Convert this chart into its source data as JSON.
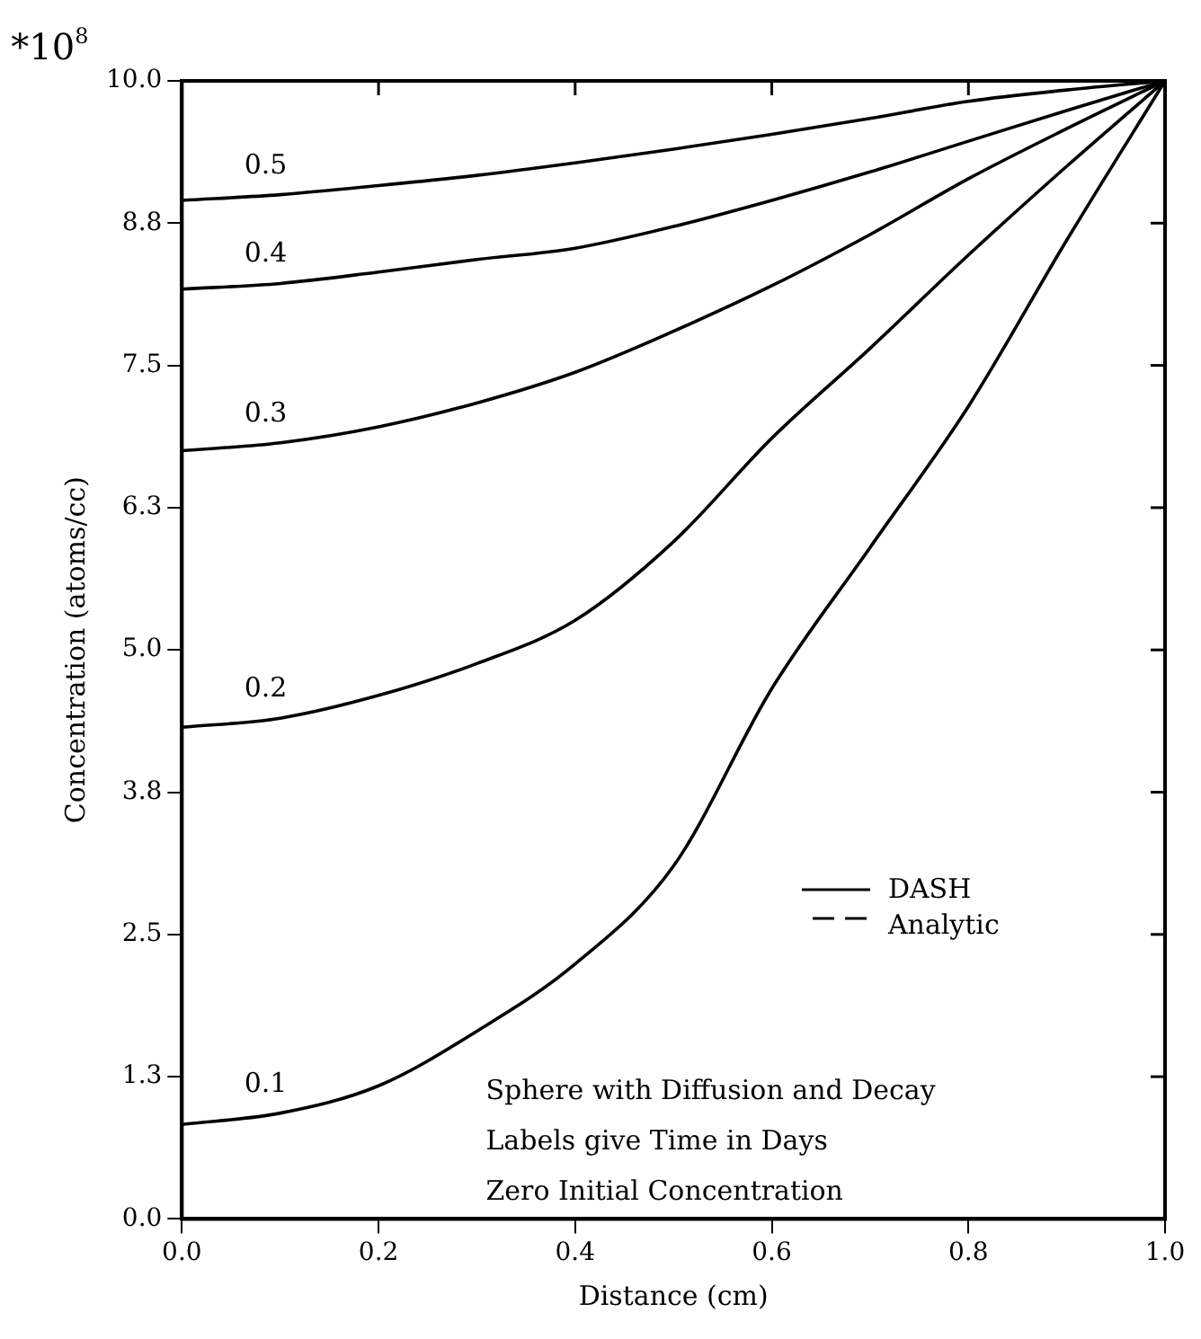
{
  "chart_data": {
    "type": "line",
    "xlabel": "Distance (cm)",
    "ylabel": "Concentration (atoms/cc)",
    "annotations": [
      "*10$^{8}$",
      "DASH",
      "Analytic",
      "Sphere with Diffusion and Decay",
      "Labels give Time in Days",
      "Zero Initial Concentration"
    ],
    "x": [
      0,
      0.1,
      0.2,
      0.3,
      0.4,
      0.5,
      0.6,
      0.7,
      0.8,
      0.9,
      1.0
    ],
    "xlim": [
      0,
      1.0
    ],
    "xticks": [
      {
        "value": 0,
        "label": "0.0"
      },
      0.2,
      0.4,
      0.6,
      0.8,
      {
        "value": 1,
        "label": "1.0"
      }
    ],
    "ylim": [
      0,
      10
    ],
    "yticks": [
      {
        "value": 0,
        "label": "0.0"
      },
      {
        "value": 1.25,
        "label": "1.3"
      },
      2.5,
      {
        "value": 3.75,
        "label": "3.8"
      },
      {
        "value": 5,
        "label": "5.0"
      },
      {
        "value": 6.25,
        "label": "6.3"
      },
      7.5,
      {
        "value": 8.75,
        "label": "8.8"
      },
      {
        "value": 10,
        "label": "10.0"
      }
    ],
    "grid": false,
    "legend": false,
    "marker": "none",
    "line_style": "solid",
    "series": [
      {
        "name": "0.1",
        "color": "#000000",
        "values": [
          0.83,
          0.93,
          1.17,
          1.65,
          2.24,
          3.1,
          4.66,
          5.9,
          7.14,
          8.6,
          10.0
        ]
      },
      {
        "name": "0.2",
        "color": "#000000",
        "values": [
          4.32,
          4.4,
          4.6,
          4.88,
          5.26,
          5.95,
          6.86,
          7.65,
          8.47,
          9.25,
          10.0
        ]
      },
      {
        "name": "0.3",
        "color": "#000000",
        "values": [
          6.75,
          6.82,
          6.96,
          7.17,
          7.44,
          7.8,
          8.2,
          8.65,
          9.14,
          9.58,
          10.0
        ]
      },
      {
        "name": "0.4",
        "color": "#000000",
        "values": [
          8.17,
          8.22,
          8.32,
          8.43,
          8.53,
          8.72,
          8.95,
          9.2,
          9.47,
          9.74,
          10.0
        ]
      },
      {
        "name": "0.5",
        "color": "#000000",
        "values": [
          8.95,
          9.0,
          9.08,
          9.17,
          9.28,
          9.4,
          9.53,
          9.67,
          9.82,
          9.92,
          10.0
        ]
      }
    ]
  }
}
